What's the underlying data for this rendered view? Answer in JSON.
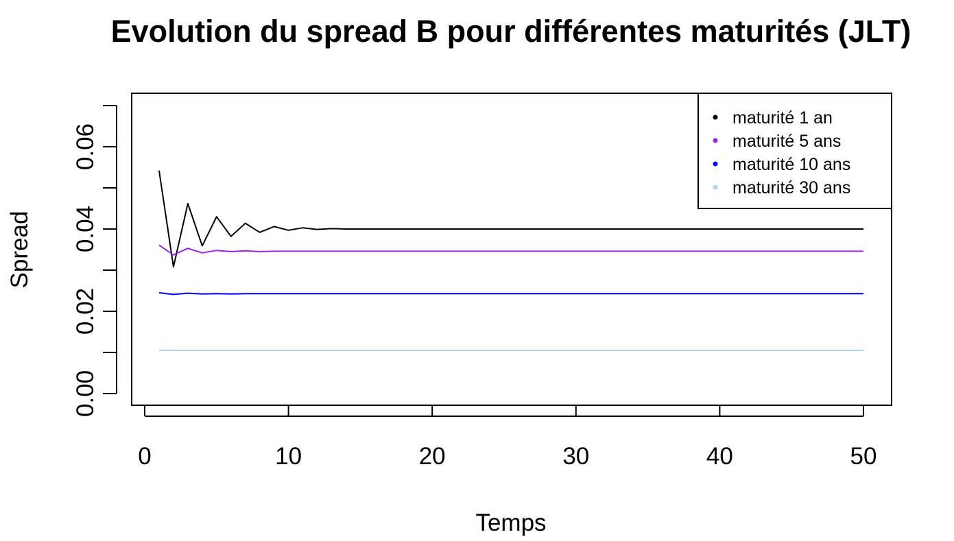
{
  "chart_data": {
    "type": "line",
    "title": "Evolution du spread B pour différentes maturités (JLT)",
    "xlabel": "Temps",
    "ylabel": "Spread",
    "xlim": [
      0,
      50
    ],
    "ylim": [
      0,
      0.07
    ],
    "x_ticks": [
      0,
      10,
      20,
      30,
      40,
      50
    ],
    "x_tick_labels": [
      "0",
      "10",
      "20",
      "30",
      "40",
      "50"
    ],
    "y_ticks": [
      0,
      0.02,
      0.04,
      0.06
    ],
    "y_tick_labels": [
      "0.00",
      "0.02",
      "0.04",
      "0.06"
    ],
    "grid": false,
    "legend_position": "top-right",
    "x": [
      1,
      2,
      3,
      4,
      5,
      6,
      7,
      8,
      9,
      10,
      11,
      12,
      13,
      14,
      15,
      16,
      17,
      18,
      19,
      20,
      21,
      22,
      23,
      24,
      25,
      26,
      27,
      28,
      29,
      30,
      31,
      32,
      33,
      34,
      35,
      36,
      37,
      38,
      39,
      40,
      41,
      42,
      43,
      44,
      45,
      46,
      47,
      48,
      49,
      50
    ],
    "series": [
      {
        "name": "maturité 1 an",
        "color": "#000000",
        "values": [
          0.0542,
          0.0308,
          0.0462,
          0.0359,
          0.043,
          0.0382,
          0.0414,
          0.0392,
          0.0406,
          0.0397,
          0.0403,
          0.0399,
          0.0401,
          0.04,
          0.04,
          0.04,
          0.04,
          0.04,
          0.04,
          0.04,
          0.04,
          0.04,
          0.04,
          0.04,
          0.04,
          0.04,
          0.04,
          0.04,
          0.04,
          0.04,
          0.04,
          0.04,
          0.04,
          0.04,
          0.04,
          0.04,
          0.04,
          0.04,
          0.04,
          0.04,
          0.04,
          0.04,
          0.04,
          0.04,
          0.04,
          0.04,
          0.04,
          0.04,
          0.04,
          0.04
        ]
      },
      {
        "name": "maturité 5 ans",
        "color": "#A020F0",
        "values": [
          0.0361,
          0.0337,
          0.0353,
          0.0342,
          0.0348,
          0.0345,
          0.0347,
          0.0345,
          0.0346,
          0.0346,
          0.0346,
          0.0346,
          0.0346,
          0.0346,
          0.0346,
          0.0346,
          0.0346,
          0.0346,
          0.0346,
          0.0346,
          0.0346,
          0.0346,
          0.0346,
          0.0346,
          0.0346,
          0.0346,
          0.0346,
          0.0346,
          0.0346,
          0.0346,
          0.0346,
          0.0346,
          0.0346,
          0.0346,
          0.0346,
          0.0346,
          0.0346,
          0.0346,
          0.0346,
          0.0346,
          0.0346,
          0.0346,
          0.0346,
          0.0346,
          0.0346,
          0.0346,
          0.0346,
          0.0346,
          0.0346,
          0.0346
        ]
      },
      {
        "name": "maturité 10 ans",
        "color": "#0000FF",
        "values": [
          0.0245,
          0.0241,
          0.0244,
          0.0242,
          0.0243,
          0.0242,
          0.0243,
          0.0243,
          0.0243,
          0.0243,
          0.0243,
          0.0243,
          0.0243,
          0.0243,
          0.0243,
          0.0243,
          0.0243,
          0.0243,
          0.0243,
          0.0243,
          0.0243,
          0.0243,
          0.0243,
          0.0243,
          0.0243,
          0.0243,
          0.0243,
          0.0243,
          0.0243,
          0.0243,
          0.0243,
          0.0243,
          0.0243,
          0.0243,
          0.0243,
          0.0243,
          0.0243,
          0.0243,
          0.0243,
          0.0243,
          0.0243,
          0.0243,
          0.0243,
          0.0243,
          0.0243,
          0.0243,
          0.0243,
          0.0243,
          0.0243,
          0.0243
        ]
      },
      {
        "name": "maturité 30 ans",
        "color": "#ADD8E6",
        "values": [
          0.0105,
          0.0105,
          0.0105,
          0.0105,
          0.0105,
          0.0105,
          0.0105,
          0.0105,
          0.0105,
          0.0105,
          0.0105,
          0.0105,
          0.0105,
          0.0105,
          0.0105,
          0.0105,
          0.0105,
          0.0105,
          0.0105,
          0.0105,
          0.0105,
          0.0105,
          0.0105,
          0.0105,
          0.0105,
          0.0105,
          0.0105,
          0.0105,
          0.0105,
          0.0105,
          0.0105,
          0.0105,
          0.0105,
          0.0105,
          0.0105,
          0.0105,
          0.0105,
          0.0105,
          0.0105,
          0.0105,
          0.0105,
          0.0105,
          0.0105,
          0.0105,
          0.0105,
          0.0105,
          0.0105,
          0.0105,
          0.0105,
          0.0105
        ]
      }
    ]
  }
}
